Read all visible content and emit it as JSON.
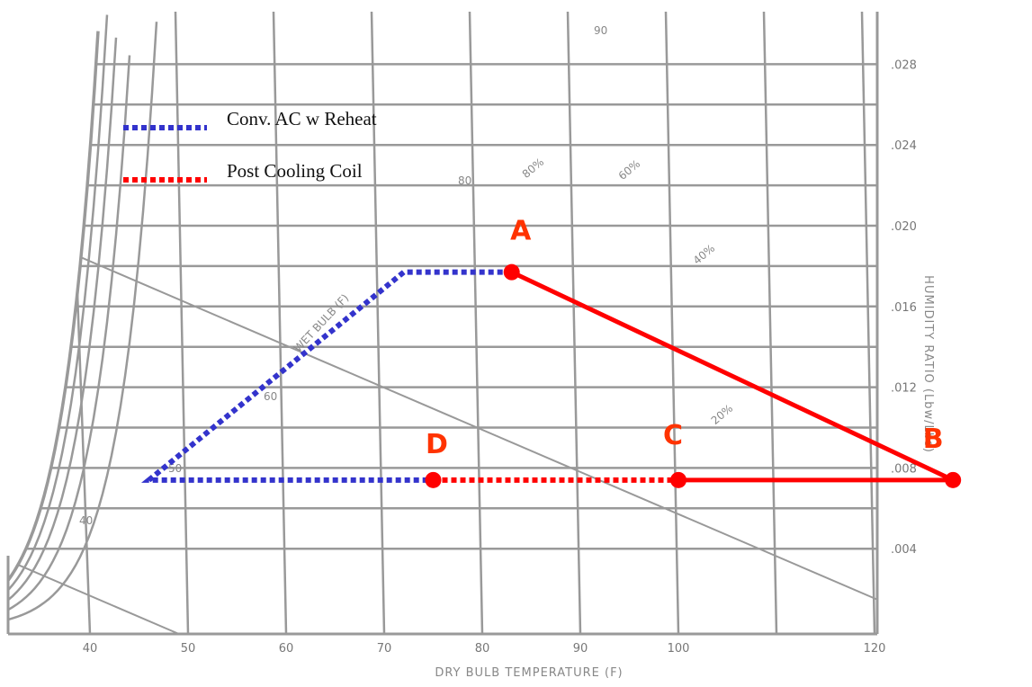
{
  "chart_data": {
    "type": "line",
    "title": "",
    "xlabel": "DRY BULB TEMPERATURE (F)",
    "ylabel": "HUMIDITY RATIO (Lbw/Lbs)",
    "x_ticks": [
      "40",
      "50",
      "60",
      "70",
      "80",
      "90",
      "100",
      "120"
    ],
    "y_ticks": [
      ".004",
      ".008",
      ".012",
      ".016",
      ".020",
      ".024",
      ".028"
    ],
    "xlim": [
      32,
      130
    ],
    "ylim": [
      0,
      0.03
    ],
    "chart_labels": {
      "wet_bulb": "WET BULB (F)",
      "wb40": "40",
      "wb50": "50",
      "wb60": "60",
      "wb80": "80",
      "wb90": "90",
      "rh80": "80%",
      "rh60": "60%",
      "rh40": "40%",
      "rh20": "20%"
    },
    "legend": [
      {
        "label": "Conv. AC w Reheat",
        "color": "#3333cc",
        "style": "dotted"
      },
      {
        "label": "Post Cooling Coil",
        "color": "#ff0000",
        "style": "dotted"
      }
    ],
    "points": [
      {
        "label": "A",
        "x": 83,
        "y": 0.0177
      },
      {
        "label": "B",
        "x": 128,
        "y": 0.0074
      },
      {
        "label": "C",
        "x": 100,
        "y": 0.0074
      },
      {
        "label": "D",
        "x": 75,
        "y": 0.0074
      }
    ],
    "series": [
      {
        "name": "Conv. AC w Reheat",
        "color": "#3333cc",
        "style": "dotted",
        "points": [
          [
            83,
            0.0177
          ],
          [
            72,
            0.0177
          ],
          [
            46,
            0.0074
          ],
          [
            75,
            0.0074
          ]
        ]
      },
      {
        "name": "Post Cooling Coil",
        "color": "#ff0000",
        "style": "dotted",
        "points": [
          [
            75,
            0.0074
          ],
          [
            100,
            0.0074
          ]
        ]
      },
      {
        "color": "#ff0000",
        "style": "solid",
        "points": [
          [
            83,
            0.0177
          ],
          [
            128,
            0.0074
          ],
          [
            100,
            0.0074
          ]
        ]
      }
    ],
    "colors": {
      "grid": "#999999",
      "point": "#ff0000",
      "label": "#ff3300"
    }
  }
}
